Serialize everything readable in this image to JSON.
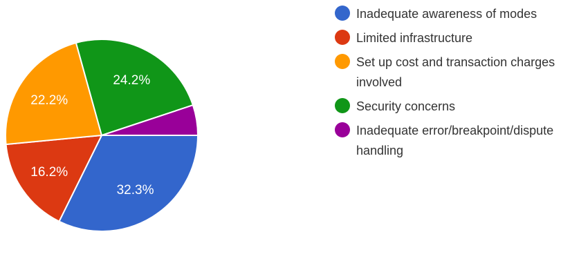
{
  "chart_data": {
    "type": "pie",
    "slices": [
      {
        "label": "Inadequate awareness of modes",
        "value": 32.3,
        "value_label": "32.3%",
        "color": "#3366cc"
      },
      {
        "label": "Limited infrastructure",
        "value": 16.2,
        "value_label": "16.2%",
        "color": "#dc3912"
      },
      {
        "label": "Set up cost and transaction charges involved",
        "value": 22.2,
        "value_label": "22.2%",
        "color": "#ff9900"
      },
      {
        "label": "Security concerns",
        "value": 24.2,
        "value_label": "24.2%",
        "color": "#109618"
      },
      {
        "label": "Inadequate error/breakpoint/dispute handling",
        "value": 5.1,
        "value_label": "",
        "color": "#990099"
      }
    ],
    "legend_position": "right"
  },
  "legend": {
    "items": [
      {
        "label": "Inadequate awareness of modes",
        "color": "#3366cc"
      },
      {
        "label": "Limited infrastructure",
        "color": "#dc3912"
      },
      {
        "label": "Set up cost and transaction charges involved",
        "color": "#ff9900"
      },
      {
        "label": "Security concerns",
        "color": "#109618"
      },
      {
        "label": "Inadequate error/breakpoint/dispute handling",
        "color": "#990099"
      }
    ]
  }
}
